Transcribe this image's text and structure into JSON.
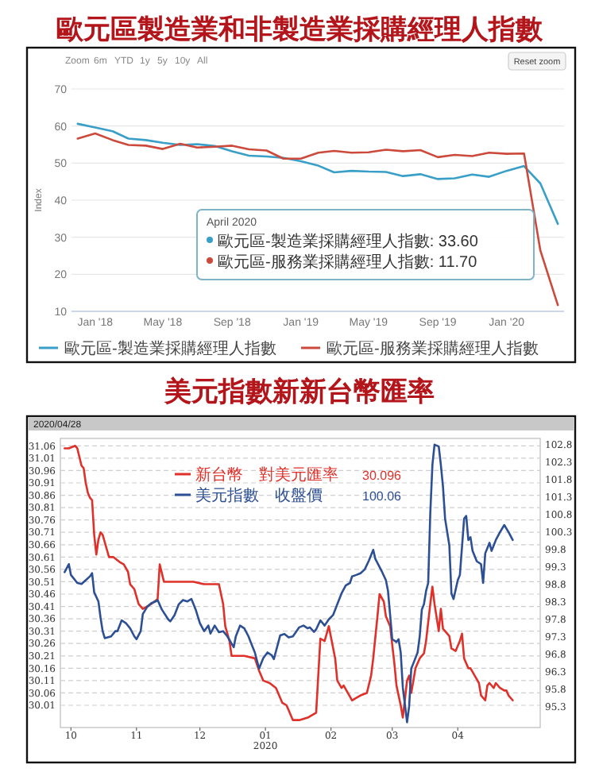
{
  "chart_data": [
    {
      "type": "line",
      "title": "歐元區製造業和非製造業採購經理人指數",
      "ylabel": "Index",
      "x": [
        "2017-12",
        "2018-01",
        "2018-02",
        "2018-03",
        "2018-04",
        "2018-05",
        "2018-06",
        "2018-07",
        "2018-08",
        "2018-09",
        "2018-10",
        "2018-11",
        "2018-12",
        "2019-01",
        "2019-02",
        "2019-03",
        "2019-04",
        "2019-05",
        "2019-06",
        "2019-07",
        "2019-08",
        "2019-09",
        "2019-10",
        "2019-11",
        "2019-12",
        "2020-01",
        "2020-02",
        "2020-03",
        "2020-04"
      ],
      "xlim": [
        "2017-11-20",
        "2020-04-12"
      ],
      "xticks": [
        {
          "value": "2018-01",
          "label": "Jan '18"
        },
        {
          "value": "2018-05",
          "label": "May '18"
        },
        {
          "value": "2018-09",
          "label": "Sep '18"
        },
        {
          "value": "2019-01",
          "label": "Jan '19"
        },
        {
          "value": "2019-05",
          "label": "May '19"
        },
        {
          "value": "2019-09",
          "label": "Sep '19"
        },
        {
          "value": "2020-01",
          "label": "Jan '20"
        }
      ],
      "ylim": [
        10,
        70
      ],
      "yticks": [
        10,
        20,
        30,
        40,
        50,
        60,
        70
      ],
      "grid": "y",
      "legend": "bottom",
      "marker": "none",
      "series": [
        {
          "name": "歐元區-製造業採購經理人指數",
          "color": "#3a9fc8",
          "values": [
            60.6,
            59.6,
            58.6,
            56.6,
            56.2,
            55.5,
            54.9,
            55.1,
            54.6,
            53.2,
            52.0,
            51.8,
            51.4,
            50.5,
            49.3,
            47.5,
            47.9,
            47.7,
            47.6,
            46.5,
            47.0,
            45.7,
            45.9,
            46.9,
            46.3,
            47.9,
            49.2,
            44.5,
            33.6
          ]
        },
        {
          "name": "歐元區-服務業採購經理人指數",
          "color": "#cc4a3c",
          "values": [
            56.6,
            58.0,
            56.2,
            54.9,
            54.7,
            53.8,
            55.2,
            54.2,
            54.4,
            54.7,
            53.7,
            53.4,
            51.2,
            51.2,
            52.8,
            53.3,
            52.8,
            52.9,
            53.6,
            53.2,
            53.5,
            51.6,
            52.2,
            51.9,
            52.8,
            52.5,
            52.6,
            26.4,
            11.7
          ]
        }
      ],
      "annotations": [
        "Zoom",
        "6m",
        "YTD",
        "1y",
        "5y",
        "10y",
        "All",
        "Reset zoom",
        "April 2020",
        "歐元區-製造業採購經理人指數: 33.60",
        "歐元區-服務業採購經理人指數: 11.70"
      ]
    },
    {
      "type": "line",
      "title": "美元指數新新台幣匯率",
      "xlim": [
        "2019-09-26",
        "2020-05-10"
      ],
      "xticks": [
        {
          "value": "2019-10-01",
          "label": "10"
        },
        {
          "value": "2019-11-01",
          "label": "11"
        },
        {
          "value": "2019-12-01",
          "label": "12"
        },
        {
          "value": "2020-01-01",
          "label": "01\n2020"
        },
        {
          "value": "2020-02-01",
          "label": "02"
        },
        {
          "value": "2020-03-01",
          "label": "03"
        },
        {
          "value": "2020-04-01",
          "label": "04"
        }
      ],
      "ylim": [
        29.92,
        31.09
      ],
      "yticks": [
        31.06,
        31.01,
        30.96,
        30.91,
        30.86,
        30.81,
        30.76,
        30.71,
        30.66,
        30.61,
        30.56,
        30.51,
        30.46,
        30.41,
        30.36,
        30.31,
        30.26,
        30.21,
        30.16,
        30.11,
        30.06,
        30.01
      ],
      "y2lim": [
        94.7,
        102.98
      ],
      "y2ticks": [
        102.8,
        102.3,
        101.8,
        101.3,
        100.8,
        100.3,
        99.8,
        99.3,
        98.8,
        98.3,
        97.8,
        97.3,
        96.8,
        96.3,
        95.8,
        95.3
      ],
      "grid": "y",
      "legend": "top",
      "marker": "none",
      "series": [
        {
          "name": "新台幣　對美元匯率",
          "color": "#e0302a",
          "x": [
            "2019-09-28",
            "2019-09-30",
            "2019-10-03",
            "2019-10-04",
            "2019-10-06",
            "2019-10-07",
            "2019-10-08",
            "2019-10-09",
            "2019-10-10",
            "2019-10-11",
            "2019-10-12",
            "2019-10-13",
            "2019-10-14",
            "2019-10-15",
            "2019-10-16",
            "2019-10-18",
            "2019-10-19",
            "2019-10-21",
            "2019-10-24",
            "2019-10-26",
            "2019-10-28",
            "2019-10-29",
            "2019-10-31",
            "2019-11-02",
            "2019-11-04",
            "2019-11-06",
            "2019-11-08",
            "2019-11-11",
            "2019-11-12",
            "2019-11-14",
            "2019-11-17",
            "2019-11-20",
            "2019-11-24",
            "2019-11-28",
            "2019-12-03",
            "2019-12-08",
            "2019-12-10",
            "2019-12-12",
            "2019-12-13",
            "2019-12-15",
            "2019-12-16",
            "2019-12-19",
            "2019-12-22",
            "2019-12-27",
            "2019-12-29",
            "2019-12-31",
            "2020-01-03",
            "2020-01-06",
            "2020-01-09",
            "2020-01-11",
            "2020-01-14",
            "2020-01-17",
            "2020-01-21",
            "2020-01-25",
            "2020-01-27",
            "2020-01-29",
            "2020-01-31",
            "2020-02-03",
            "2020-02-04",
            "2020-02-06",
            "2020-02-07",
            "2020-02-09",
            "2020-02-11",
            "2020-02-13",
            "2020-02-15",
            "2020-02-18",
            "2020-02-20",
            "2020-02-21",
            "2020-02-23",
            "2020-02-24",
            "2020-02-26",
            "2020-02-27",
            "2020-02-29",
            "2020-03-02",
            "2020-03-03",
            "2020-03-05",
            "2020-03-06",
            "2020-03-08",
            "2020-03-09",
            "2020-03-10",
            "2020-03-12",
            "2020-03-14",
            "2020-03-16",
            "2020-03-17",
            "2020-03-19",
            "2020-03-20",
            "2020-03-21",
            "2020-03-23",
            "2020-03-24",
            "2020-03-25",
            "2020-03-26",
            "2020-03-28",
            "2020-03-29",
            "2020-03-31",
            "2020-04-02",
            "2020-04-03",
            "2020-04-04",
            "2020-04-06",
            "2020-04-07",
            "2020-04-09",
            "2020-04-11",
            "2020-04-12",
            "2020-04-14",
            "2020-04-15",
            "2020-04-16",
            "2020-04-18",
            "2020-04-19",
            "2020-04-21",
            "2020-04-23",
            "2020-04-24",
            "2020-04-25",
            "2020-04-27"
          ],
          "values": [
            31.05,
            31.05,
            31.06,
            31.05,
            30.98,
            30.97,
            30.91,
            30.87,
            30.85,
            30.84,
            30.7,
            30.62,
            30.68,
            30.71,
            30.7,
            30.64,
            30.61,
            30.61,
            30.59,
            30.58,
            30.55,
            30.5,
            30.48,
            30.42,
            30.4,
            30.41,
            30.42,
            30.44,
            30.58,
            30.51,
            30.51,
            30.51,
            30.51,
            30.51,
            30.5,
            30.5,
            30.5,
            30.42,
            30.33,
            30.27,
            30.21,
            30.21,
            30.21,
            30.2,
            30.15,
            30.11,
            30.1,
            30.08,
            30.02,
            30.01,
            29.95,
            29.95,
            29.96,
            29.98,
            30.28,
            30.27,
            30.33,
            30.2,
            30.11,
            30.08,
            30.09,
            30.06,
            30.03,
            30.04,
            30.05,
            30.06,
            30.13,
            30.2,
            30.37,
            30.46,
            30.43,
            30.37,
            30.33,
            30.18,
            30.09,
            30.01,
            29.96,
            30.11,
            30.13,
            30.06,
            30.16,
            30.2,
            30.22,
            30.27,
            30.42,
            30.49,
            30.42,
            30.31,
            30.4,
            30.32,
            30.31,
            30.29,
            30.24,
            30.23,
            30.27,
            30.3,
            30.2,
            30.16,
            30.16,
            30.13,
            30.1,
            30.05,
            30.03,
            30.09,
            30.1,
            30.08,
            30.1,
            30.08,
            30.07,
            30.07,
            30.05,
            30.03
          ]
        },
        {
          "name": "美元指數　收盤價",
          "color": "#2d4f94",
          "axis": "y2",
          "x": [
            "2019-09-28",
            "2019-09-30",
            "2019-10-01",
            "2019-10-04",
            "2019-10-06",
            "2019-10-08",
            "2019-10-10",
            "2019-10-11",
            "2019-10-12",
            "2019-10-14",
            "2019-10-15",
            "2019-10-16",
            "2019-10-17",
            "2019-10-20",
            "2019-10-22",
            "2019-10-23",
            "2019-10-25",
            "2019-10-27",
            "2019-10-29",
            "2019-10-31",
            "2019-11-01",
            "2019-11-03",
            "2019-11-04",
            "2019-11-06",
            "2019-11-08",
            "2019-11-10",
            "2019-11-11",
            "2019-11-13",
            "2019-11-16",
            "2019-11-17",
            "2019-11-19",
            "2019-11-21",
            "2019-11-23",
            "2019-11-25",
            "2019-11-27",
            "2019-11-29",
            "2019-12-01",
            "2019-12-03",
            "2019-12-05",
            "2019-12-06",
            "2019-12-08",
            "2019-12-10",
            "2019-12-12",
            "2019-12-14",
            "2019-12-17",
            "2019-12-18",
            "2019-12-20",
            "2019-12-22",
            "2019-12-24",
            "2019-12-25",
            "2019-12-27",
            "2019-12-29",
            "2019-12-31",
            "2020-01-02",
            "2020-01-04",
            "2020-01-05",
            "2020-01-08",
            "2020-01-10",
            "2020-01-12",
            "2020-01-14",
            "2020-01-17",
            "2020-01-19",
            "2020-01-21",
            "2020-01-22",
            "2020-01-24",
            "2020-01-25",
            "2020-01-27",
            "2020-01-29",
            "2020-01-31",
            "2020-02-02",
            "2020-02-04",
            "2020-02-06",
            "2020-02-08",
            "2020-02-10",
            "2020-02-11",
            "2020-02-13",
            "2020-02-15",
            "2020-02-17",
            "2020-02-19",
            "2020-02-21",
            "2020-02-22",
            "2020-02-24",
            "2020-02-25",
            "2020-02-27",
            "2020-02-28",
            "2020-02-29",
            "2020-03-01",
            "2020-03-03",
            "2020-03-04",
            "2020-03-05",
            "2020-03-06",
            "2020-03-08",
            "2020-03-09",
            "2020-03-10",
            "2020-03-11",
            "2020-03-13",
            "2020-03-14",
            "2020-03-15",
            "2020-03-16",
            "2020-03-17",
            "2020-03-18",
            "2020-03-19",
            "2020-03-20",
            "2020-03-21",
            "2020-03-23",
            "2020-03-24",
            "2020-03-25",
            "2020-03-26",
            "2020-03-28",
            "2020-03-29",
            "2020-03-30",
            "2020-04-01",
            "2020-04-02",
            "2020-04-04",
            "2020-04-05",
            "2020-04-06",
            "2020-04-07",
            "2020-04-08",
            "2020-04-10",
            "2020-04-12",
            "2020-04-13",
            "2020-04-14",
            "2020-04-16",
            "2020-04-17",
            "2020-04-19",
            "2020-04-21",
            "2020-04-23",
            "2020-04-25",
            "2020-04-27"
          ],
          "values": [
            99.15,
            99.38,
            99.07,
            98.84,
            98.81,
            98.92,
            99.03,
            99.12,
            98.57,
            98.31,
            97.85,
            97.46,
            97.26,
            97.31,
            97.46,
            97.46,
            97.77,
            97.69,
            97.54,
            97.31,
            97.23,
            97.46,
            97.95,
            98.15,
            98.26,
            98.31,
            98.35,
            98.08,
            97.8,
            97.74,
            97.92,
            98.23,
            98.35,
            98.31,
            98.38,
            98.08,
            97.69,
            97.46,
            97.62,
            97.39,
            97.62,
            97.43,
            97.46,
            97.31,
            97.0,
            97.31,
            97.62,
            97.54,
            97.31,
            97.15,
            96.85,
            96.39,
            96.69,
            96.85,
            96.77,
            96.66,
            97.34,
            97.38,
            97.28,
            97.31,
            97.57,
            97.62,
            97.54,
            97.57,
            97.44,
            97.51,
            97.77,
            97.62,
            97.8,
            97.92,
            98.23,
            98.54,
            98.77,
            98.84,
            99.03,
            99.07,
            99.12,
            99.23,
            99.49,
            99.79,
            99.53,
            99.3,
            99.18,
            98.92,
            98.61,
            97.92,
            97.23,
            97.15,
            97.23,
            96.85,
            95.85,
            94.85,
            95.31,
            96.39,
            96.54,
            96.85,
            97.31,
            98.08,
            98.23,
            98.61,
            98.84,
            100.84,
            102.22,
            102.8,
            102.75,
            102.22,
            101.6,
            100.68,
            99.92,
            98.54,
            98.38,
            98.92,
            99.07,
            100.68,
            100.76,
            100.07,
            100.15,
            99.76,
            99.46,
            99.38,
            98.84,
            99.69,
            99.99,
            99.76,
            100.07,
            100.3,
            100.5,
            100.3,
            100.07
          ]
        }
      ],
      "annotations": [
        "2020/04/28",
        "30.096",
        "100.06"
      ]
    }
  ]
}
